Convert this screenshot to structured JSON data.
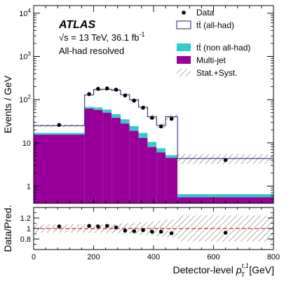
{
  "chart_data": {
    "type": "histogram",
    "experiment_label": "ATLAS",
    "energy_label": "√s = 13 TeV, 36.1 fb",
    "energy_superscript": "-1",
    "region_label": "All-had resolved",
    "ylabel": "Events / GeV",
    "ratio_ylabel": "Data/Pred.",
    "xlabel": "Detector-level",
    "xlabel_symbol": "p",
    "xlabel_sub": "T",
    "xlabel_sup": "t,1",
    "xlabel_unit": "[GeV]",
    "xlim": [
      0,
      800
    ],
    "ylim": [
      0.4,
      15000
    ],
    "yscale": "log",
    "ratio_ylim": [
      0.6,
      1.4
    ],
    "x_ticks": [
      "0",
      "200",
      "400",
      "600",
      "800"
    ],
    "y_ticks": [
      {
        "value": 1,
        "base": "1",
        "exp": ""
      },
      {
        "value": 10,
        "base": "10",
        "exp": ""
      },
      {
        "value": 100,
        "base": "10",
        "exp": "2"
      },
      {
        "value": 1000,
        "base": "10",
        "exp": "3"
      },
      {
        "value": 10000,
        "base": "10",
        "exp": "4"
      }
    ],
    "ratio_y_ticks": [
      "0.8",
      "1",
      "1.2"
    ],
    "legend": {
      "placement": "top-right",
      "data": "Data",
      "ttbar_allhad": "tt̄ (all-had)",
      "ttbar_nonallhad": "tt̄ (non all-had)",
      "multijet": "Multi-jet",
      "uncertainty": "Stat.+Syst."
    },
    "colors": {
      "ttbar_allhad_fill": "#ffffff",
      "ttbar_allhad_line": "#1e1e6e",
      "ttbar_nonallhad": "#33cccc",
      "multijet": "#990099",
      "unity_line": "#dd0000"
    },
    "bin_edges": [
      0,
      170,
      200,
      230,
      260,
      290,
      320,
      350,
      380,
      410,
      440,
      480,
      800
    ],
    "stack": {
      "multijet": [
        15.5,
        62,
        58,
        50,
        38,
        28,
        19,
        13,
        8,
        6,
        4.5,
        0.55
      ],
      "ttbar_nonallhad": [
        1.5,
        6,
        8,
        9,
        8,
        7,
        5.5,
        4,
        2.5,
        1.5,
        0.7,
        0.1
      ],
      "ttbar_allhad": [
        8,
        60,
        105,
        115,
        120,
        95,
        75,
        50,
        30,
        18,
        35,
        3.7
      ]
    },
    "total_prediction": [
      25,
      128,
      171,
      174,
      166,
      130,
      99.5,
      67,
      40.5,
      25.5,
      40.2,
      4.35
    ],
    "uncertainty_fraction": [
      0.08,
      0.08,
      0.08,
      0.08,
      0.09,
      0.1,
      0.11,
      0.12,
      0.13,
      0.15,
      0.17,
      0.25
    ],
    "data": {
      "x": [
        85,
        185,
        215,
        245,
        275,
        305,
        335,
        365,
        395,
        425,
        460,
        640
      ],
      "y": [
        26,
        135,
        178,
        182,
        170,
        125,
        95,
        65,
        38,
        24,
        36,
        4.0
      ]
    },
    "ratio": {
      "x": [
        85,
        185,
        215,
        245,
        275,
        305,
        335,
        365,
        395,
        425,
        460,
        640
      ],
      "y": [
        1.04,
        1.05,
        1.04,
        1.05,
        1.02,
        0.96,
        0.95,
        0.97,
        0.94,
        0.94,
        0.91,
        0.92
      ]
    }
  }
}
